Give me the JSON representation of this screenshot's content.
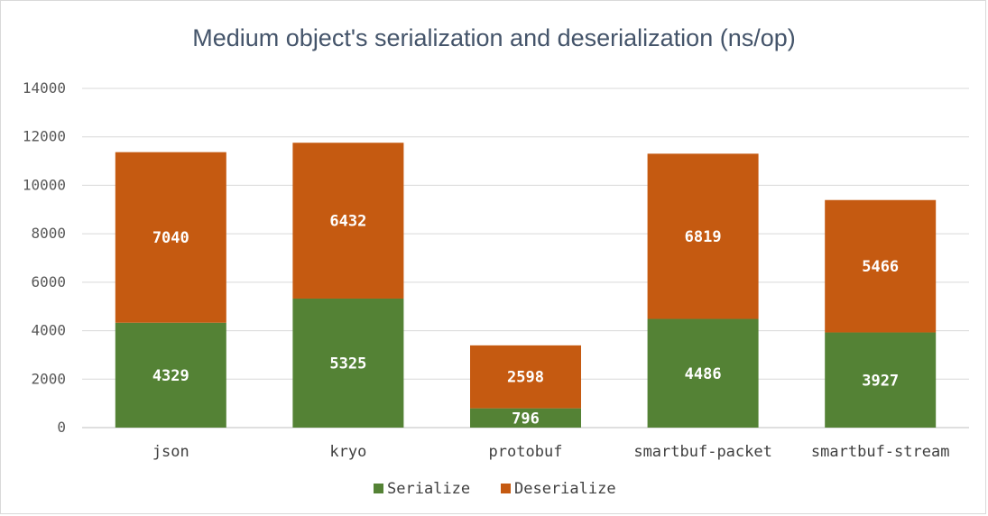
{
  "chart_data": {
    "type": "bar",
    "stacked": true,
    "title": "Medium object's serialization and deserialization (ns/op)",
    "categories": [
      "json",
      "kryo",
      "protobuf",
      "smartbuf-packet",
      "smartbuf-stream"
    ],
    "series": [
      {
        "name": "Serialize",
        "color": "#548235",
        "values": [
          4329,
          5325,
          796,
          4486,
          3927
        ]
      },
      {
        "name": "Deserialize",
        "color": "#c55a11",
        "values": [
          7040,
          6432,
          2598,
          6819,
          5466
        ]
      }
    ],
    "ylim": [
      0,
      14000
    ],
    "yticks": [
      0,
      2000,
      4000,
      6000,
      8000,
      10000,
      12000,
      14000
    ],
    "grid": true,
    "legend_position": "bottom"
  }
}
